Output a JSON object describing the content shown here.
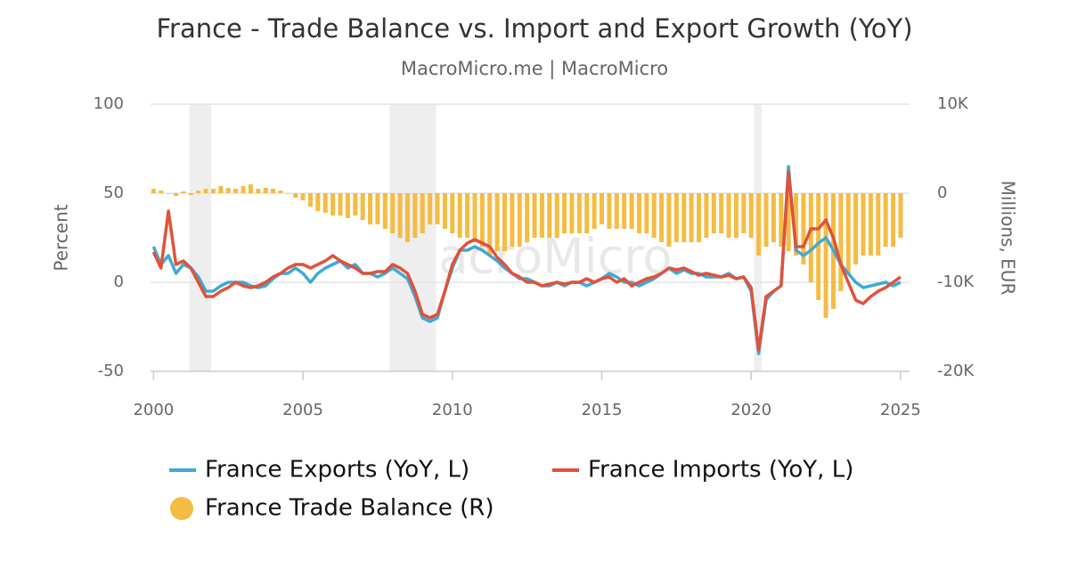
{
  "chart_data": {
    "type": "combo",
    "title": "France - Trade Balance vs. Import and Export Growth (YoY)",
    "subtitle": "MacroMicro.me | MacroMicro",
    "watermark": "MacroMicro",
    "y_label": "Percent",
    "y2_label": "Millions, EUR",
    "xlim": [
      1999.9,
      2025.3
    ],
    "xticks": [
      2000,
      2005,
      2010,
      2015,
      2020,
      2025
    ],
    "ylim": [
      -50,
      100
    ],
    "yticks": [
      -50,
      0,
      50,
      100
    ],
    "y2lim": [
      -20000,
      10000
    ],
    "y2ticks": [
      {
        "value": -20000,
        "label": "-20K"
      },
      {
        "value": -10000,
        "label": "-10K"
      },
      0,
      {
        "value": 10000,
        "label": "10K"
      }
    ],
    "grid": true,
    "legend": "bottom",
    "shaded_periods": [
      [
        2001.2,
        2001.93
      ],
      [
        2007.9,
        2009.46
      ],
      [
        2020.1,
        2020.35
      ]
    ],
    "x": [
      2000,
      2000.25,
      2000.5,
      2000.75,
      2001,
      2001.25,
      2001.5,
      2001.75,
      2002,
      2002.25,
      2002.5,
      2002.75,
      2003,
      2003.25,
      2003.5,
      2003.75,
      2004,
      2004.25,
      2004.5,
      2004.75,
      2005,
      2005.25,
      2005.5,
      2005.75,
      2006,
      2006.25,
      2006.5,
      2006.75,
      2007,
      2007.25,
      2007.5,
      2007.75,
      2008,
      2008.25,
      2008.5,
      2008.75,
      2009,
      2009.25,
      2009.5,
      2009.75,
      2010,
      2010.25,
      2010.5,
      2010.75,
      2011,
      2011.25,
      2011.5,
      2011.75,
      2012,
      2012.25,
      2012.5,
      2012.75,
      2013,
      2013.25,
      2013.5,
      2013.75,
      2014,
      2014.25,
      2014.5,
      2014.75,
      2015,
      2015.25,
      2015.5,
      2015.75,
      2016,
      2016.25,
      2016.5,
      2016.75,
      2017,
      2017.25,
      2017.5,
      2017.75,
      2018,
      2018.25,
      2018.5,
      2018.75,
      2019,
      2019.25,
      2019.5,
      2019.75,
      2020,
      2020.25,
      2020.5,
      2020.75,
      2021,
      2021.25,
      2021.5,
      2021.75,
      2022,
      2022.25,
      2022.5,
      2022.75,
      2023,
      2023.25,
      2023.5,
      2023.75,
      2024,
      2024.25,
      2024.5,
      2024.75,
      2025
    ],
    "series": [
      {
        "name": "France Trade Balance (R)",
        "type": "bar",
        "axis": "y2",
        "color": "#f5bc43",
        "values": [
          500,
          300,
          0,
          -300,
          200,
          -200,
          300,
          500,
          500,
          800,
          600,
          500,
          800,
          1000,
          500,
          600,
          500,
          300,
          0,
          -500,
          -800,
          -1500,
          -2000,
          -2200,
          -2500,
          -2500,
          -2800,
          -2500,
          -3000,
          -3500,
          -3500,
          -4000,
          -4500,
          -5000,
          -5500,
          -5000,
          -4500,
          -3500,
          -3500,
          -4000,
          -4500,
          -5000,
          -5000,
          -5500,
          -6000,
          -7000,
          -6500,
          -6500,
          -6000,
          -6000,
          -5500,
          -5000,
          -5000,
          -5000,
          -5000,
          -4500,
          -4500,
          -4500,
          -4500,
          -4000,
          -3500,
          -4000,
          -4000,
          -4000,
          -4000,
          -4500,
          -4500,
          -5000,
          -5500,
          -6000,
          -5500,
          -5500,
          -5500,
          -5500,
          -5000,
          -4500,
          -4500,
          -5000,
          -5000,
          -4500,
          -5000,
          -7000,
          -6000,
          -5500,
          -6000,
          -6500,
          -7000,
          -8000,
          -10000,
          -12000,
          -14000,
          -13000,
          -11000,
          -9000,
          -8000,
          -7000,
          -7000,
          -7000,
          -6000,
          -6000,
          -5000
        ]
      },
      {
        "name": "France Exports (YoY, L)",
        "type": "line",
        "axis": "y",
        "color": "#3fa9d6",
        "values": [
          20,
          10,
          15,
          5,
          10,
          8,
          3,
          -5,
          -5,
          -2,
          0,
          0,
          0,
          -2,
          -3,
          -2,
          2,
          5,
          5,
          8,
          5,
          0,
          5,
          8,
          10,
          12,
          8,
          10,
          5,
          5,
          3,
          5,
          8,
          5,
          2,
          -8,
          -20,
          -22,
          -20,
          -5,
          8,
          18,
          18,
          20,
          18,
          15,
          12,
          8,
          5,
          2,
          2,
          0,
          -2,
          -2,
          0,
          -2,
          0,
          0,
          -2,
          0,
          2,
          5,
          3,
          0,
          0,
          -2,
          0,
          2,
          5,
          8,
          5,
          7,
          5,
          5,
          3,
          3,
          3,
          5,
          2,
          3,
          -5,
          -40,
          -10,
          -5,
          -2,
          65,
          18,
          15,
          18,
          22,
          25,
          18,
          10,
          5,
          0,
          -3,
          -2,
          -1,
          0,
          -2,
          0
        ]
      },
      {
        "name": "France Imports (YoY, L)",
        "type": "line",
        "axis": "y",
        "color": "#e0523a",
        "values": [
          17,
          8,
          40,
          10,
          12,
          8,
          0,
          -8,
          -8,
          -5,
          -3,
          0,
          -2,
          -3,
          -2,
          0,
          3,
          5,
          8,
          10,
          10,
          8,
          10,
          12,
          15,
          12,
          10,
          8,
          5,
          5,
          6,
          6,
          10,
          8,
          5,
          -5,
          -18,
          -20,
          -18,
          -5,
          10,
          18,
          22,
          24,
          22,
          20,
          14,
          10,
          5,
          3,
          0,
          0,
          -2,
          -1,
          0,
          -1,
          0,
          0,
          2,
          0,
          2,
          3,
          0,
          2,
          -2,
          0,
          2,
          3,
          5,
          8,
          7,
          8,
          6,
          4,
          5,
          4,
          3,
          4,
          2,
          3,
          -3,
          -38,
          -8,
          -5,
          -2,
          62,
          20,
          20,
          30,
          30,
          35,
          25,
          10,
          0,
          -10,
          -12,
          -8,
          -5,
          -3,
          0,
          3
        ]
      }
    ]
  }
}
